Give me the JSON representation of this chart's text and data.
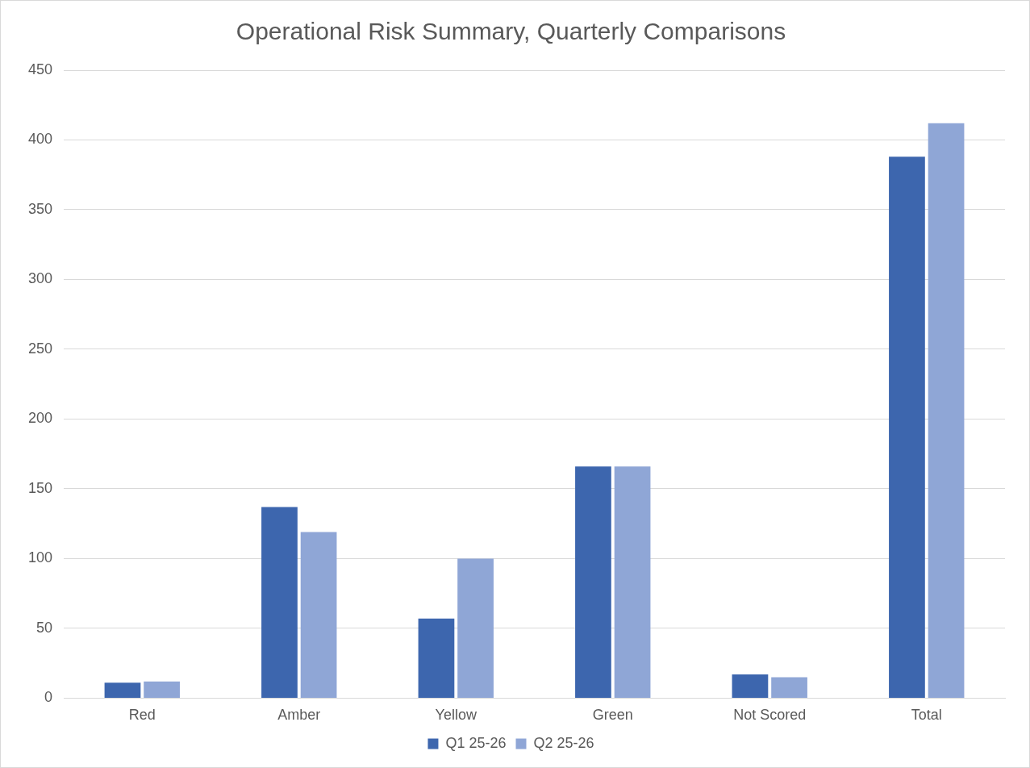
{
  "chart_data": {
    "type": "bar",
    "title": "Operational Risk Summary, Quarterly Comparisons",
    "categories": [
      "Red",
      "Amber",
      "Yellow",
      "Green",
      "Not Scored",
      "Total"
    ],
    "series": [
      {
        "name": "Q1 25-26",
        "color": "#3d66ae",
        "values": [
          11,
          137,
          57,
          166,
          17,
          388
        ]
      },
      {
        "name": "Q2 25-26",
        "color": "#8fa6d6",
        "values": [
          12,
          119,
          100,
          166,
          15,
          412
        ]
      }
    ],
    "ylim": [
      0,
      450
    ],
    "yticks": [
      0,
      50,
      100,
      150,
      200,
      250,
      300,
      350,
      400,
      450
    ],
    "grid": "y",
    "legend": "bottom"
  }
}
